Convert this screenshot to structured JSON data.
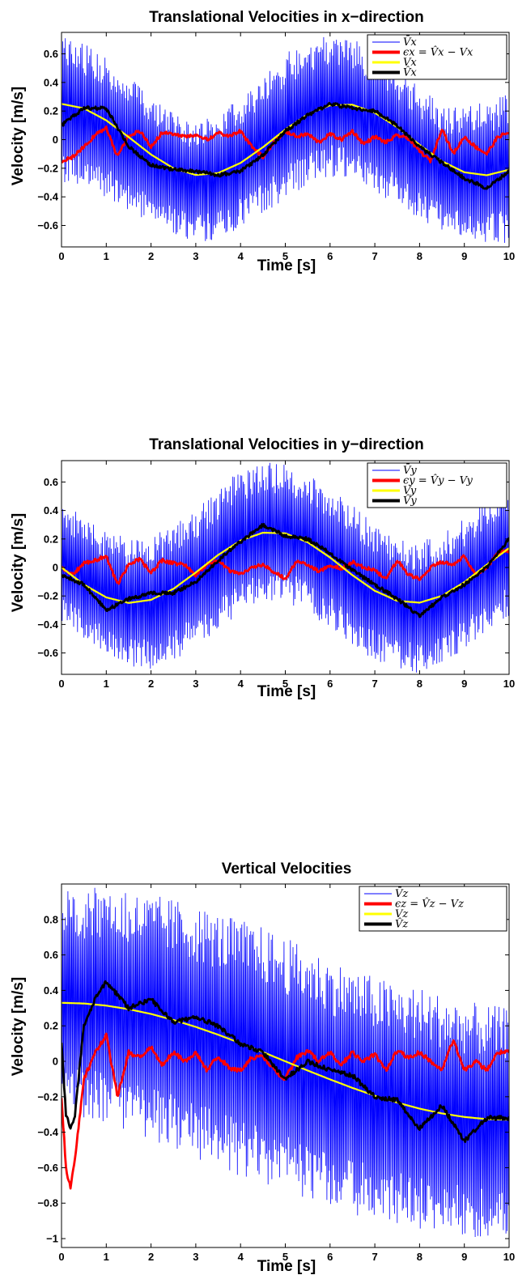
{
  "chart_data": [
    {
      "type": "line",
      "title": "Translational Velocities in x−direction",
      "xlabel": "Time [s]",
      "ylabel": "Velocity [m/s]",
      "xlim": [
        0,
        10
      ],
      "ylim": [
        -0.75,
        0.75
      ],
      "xticks": [
        "0",
        "1",
        "2",
        "3",
        "4",
        "5",
        "6",
        "7",
        "8",
        "9",
        "10"
      ],
      "yticks": [
        {
          "value": -0.6,
          "label": "−0.6"
        },
        {
          "value": -0.4,
          "label": "−0.4"
        },
        {
          "value": -0.2,
          "label": "−0.2"
        },
        {
          "value": 0,
          "label": "0"
        },
        {
          "value": 0.2,
          "label": "0.2"
        },
        {
          "value": 0.4,
          "label": "0.4"
        },
        {
          "value": 0.6,
          "label": "0.6"
        }
      ],
      "grid": false,
      "legend_position": "top-right",
      "series": [
        {
          "name": "V̄x",
          "color": "#0000ff",
          "role": "measured",
          "x": [
            0,
            0.5,
            1,
            1.5,
            2,
            2.5,
            3,
            3.5,
            4,
            4.5,
            5,
            5.5,
            6,
            6.5,
            7,
            7.5,
            8,
            8.5,
            9,
            9.5,
            10
          ],
          "envelope_upper": [
            0.72,
            0.68,
            0.6,
            0.46,
            0.32,
            0.18,
            0.12,
            0.18,
            0.3,
            0.46,
            0.6,
            0.7,
            0.74,
            0.72,
            0.62,
            0.5,
            0.36,
            0.26,
            0.22,
            0.28,
            0.32
          ],
          "envelope_lower": [
            -0.3,
            -0.36,
            -0.42,
            -0.5,
            -0.58,
            -0.66,
            -0.72,
            -0.7,
            -0.62,
            -0.52,
            -0.42,
            -0.32,
            -0.26,
            -0.28,
            -0.36,
            -0.46,
            -0.56,
            -0.66,
            -0.72,
            -0.74,
            -0.72
          ]
        },
        {
          "name": "ϵx = V̂x − Vx",
          "color": "#ff0000",
          "role": "error",
          "x": [
            0,
            0.25,
            0.5,
            0.75,
            1,
            1.25,
            1.5,
            1.75,
            2,
            2.25,
            2.5,
            2.75,
            3,
            3.25,
            3.5,
            3.75,
            4,
            4.25,
            4.5,
            4.75,
            5,
            5.25,
            5.5,
            5.75,
            6,
            6.25,
            6.5,
            6.75,
            7,
            7.25,
            7.5,
            7.75,
            8,
            8.25,
            8.5,
            8.75,
            9,
            9.25,
            9.5,
            9.75,
            10
          ],
          "y": [
            -0.15,
            -0.12,
            -0.05,
            0.03,
            0.08,
            -0.12,
            0.03,
            0.06,
            -0.05,
            0.05,
            0.04,
            0.02,
            0.03,
            0.0,
            0.05,
            0.02,
            0.06,
            -0.05,
            -0.12,
            -0.02,
            0.06,
            0.02,
            0.04,
            -0.02,
            0.04,
            0.0,
            0.06,
            -0.03,
            0.02,
            -0.02,
            0.03,
            0.01,
            -0.08,
            -0.15,
            0.08,
            -0.1,
            0.02,
            -0.05,
            -0.1,
            0.02,
            0.05
          ]
        },
        {
          "name": "Vx",
          "color": "#ffff00",
          "role": "true",
          "formula": "0.25*cos(t)",
          "x": [
            0,
            0.5,
            1,
            1.5,
            2,
            2.5,
            3,
            3.5,
            4,
            4.5,
            5,
            5.5,
            6,
            6.5,
            7,
            7.5,
            8,
            8.5,
            9,
            9.5,
            10
          ],
          "y": [
            0.25,
            0.219,
            0.135,
            0.018,
            -0.104,
            -0.2,
            -0.247,
            -0.234,
            -0.163,
            -0.053,
            0.071,
            0.177,
            0.24,
            0.244,
            0.188,
            0.087,
            -0.036,
            -0.151,
            -0.228,
            -0.249,
            -0.21
          ]
        },
        {
          "name": "V̂x",
          "color": "#000000",
          "role": "estimate",
          "x": [
            0,
            0.5,
            1,
            1.5,
            2,
            2.5,
            3,
            3.5,
            4,
            4.5,
            5,
            5.5,
            6,
            6.5,
            7,
            7.5,
            8,
            8.5,
            9,
            9.5,
            10
          ],
          "y": [
            0.1,
            0.22,
            0.22,
            -0.05,
            -0.18,
            -0.21,
            -0.22,
            -0.25,
            -0.22,
            -0.11,
            0.06,
            0.17,
            0.25,
            0.22,
            0.2,
            0.1,
            -0.05,
            -0.16,
            -0.27,
            -0.34,
            -0.22
          ]
        }
      ]
    },
    {
      "type": "line",
      "title": "Translational Velocities in y−direction",
      "xlabel": "Time [s]",
      "ylabel": "Velocity [m/s]",
      "xlim": [
        0,
        10
      ],
      "ylim": [
        -0.75,
        0.75
      ],
      "xticks": [
        "0",
        "1",
        "2",
        "3",
        "4",
        "5",
        "6",
        "7",
        "8",
        "9",
        "10"
      ],
      "yticks": [
        {
          "value": -0.6,
          "label": "−0.6"
        },
        {
          "value": -0.4,
          "label": "−0.4"
        },
        {
          "value": -0.2,
          "label": "−0.2"
        },
        {
          "value": 0,
          "label": "0"
        },
        {
          "value": 0.2,
          "label": "0.2"
        },
        {
          "value": 0.4,
          "label": "0.4"
        },
        {
          "value": 0.6,
          "label": "0.6"
        }
      ],
      "grid": false,
      "legend_position": "top-right",
      "series": [
        {
          "name": "V̄y",
          "color": "#0000ff",
          "role": "measured",
          "x": [
            0,
            0.5,
            1,
            1.5,
            2,
            2.5,
            3,
            3.5,
            4,
            4.5,
            5,
            5.5,
            6,
            6.5,
            7,
            7.5,
            8,
            8.5,
            9,
            9.5,
            10
          ],
          "envelope_upper": [
            0.46,
            0.36,
            0.26,
            0.2,
            0.22,
            0.3,
            0.42,
            0.56,
            0.68,
            0.74,
            0.74,
            0.66,
            0.56,
            0.44,
            0.32,
            0.22,
            0.18,
            0.24,
            0.36,
            0.5,
            0.6
          ],
          "envelope_lower": [
            -0.4,
            -0.5,
            -0.62,
            -0.7,
            -0.72,
            -0.66,
            -0.56,
            -0.44,
            -0.32,
            -0.24,
            -0.24,
            -0.32,
            -0.42,
            -0.54,
            -0.66,
            -0.72,
            -0.74,
            -0.7,
            -0.58,
            -0.46,
            -0.34
          ]
        },
        {
          "name": "ϵy = V̂y − Vy",
          "color": "#ff0000",
          "role": "error",
          "x": [
            0,
            0.25,
            0.5,
            0.75,
            1,
            1.25,
            1.5,
            1.75,
            2,
            2.25,
            2.5,
            2.75,
            3,
            3.25,
            3.5,
            3.75,
            4,
            4.25,
            4.5,
            4.75,
            5,
            5.25,
            5.5,
            5.75,
            6,
            6.25,
            6.5,
            6.75,
            7,
            7.25,
            7.5,
            7.75,
            8,
            8.25,
            8.5,
            8.75,
            9,
            9.25,
            9.5,
            9.75,
            10
          ],
          "y": [
            0.0,
            -0.05,
            0.03,
            0.05,
            0.08,
            -0.12,
            0.02,
            0.06,
            -0.04,
            0.05,
            0.03,
            0.02,
            -0.06,
            0.02,
            0.05,
            -0.02,
            -0.05,
            0.0,
            0.02,
            -0.03,
            -0.08,
            0.04,
            0.02,
            -0.03,
            0.02,
            -0.01,
            0.04,
            0.0,
            -0.02,
            -0.08,
            0.05,
            -0.05,
            -0.08,
            0.0,
            0.04,
            0.02,
            0.08,
            -0.05,
            0.0,
            0.1,
            0.12
          ]
        },
        {
          "name": "Vy",
          "color": "#ffff00",
          "role": "true",
          "formula": "-0.25*sin(t)",
          "x": [
            0,
            0.5,
            1,
            1.5,
            2,
            2.5,
            3,
            3.5,
            4,
            4.5,
            5,
            5.5,
            6,
            6.5,
            7,
            7.5,
            8,
            8.5,
            9,
            9.5,
            10
          ],
          "y": [
            0.0,
            -0.12,
            -0.21,
            -0.249,
            -0.227,
            -0.15,
            -0.035,
            0.088,
            0.189,
            0.244,
            0.24,
            0.177,
            0.07,
            -0.054,
            -0.164,
            -0.234,
            -0.247,
            -0.199,
            -0.103,
            0.019,
            0.136
          ]
        },
        {
          "name": "V̂y",
          "color": "#000000",
          "role": "estimate",
          "x": [
            0,
            0.5,
            1,
            1.5,
            2,
            2.5,
            3,
            3.5,
            4,
            4.5,
            5,
            5.5,
            6,
            6.5,
            7,
            7.5,
            8,
            8.5,
            9,
            9.5,
            10
          ],
          "y": [
            -0.05,
            -0.12,
            -0.3,
            -0.22,
            -0.18,
            -0.18,
            -0.1,
            0.05,
            0.18,
            0.3,
            0.22,
            0.2,
            0.1,
            -0.02,
            -0.12,
            -0.22,
            -0.34,
            -0.21,
            -0.12,
            0.0,
            0.2
          ]
        }
      ]
    },
    {
      "type": "line",
      "title": "Vertical Velocities",
      "xlabel": "Time [s]",
      "ylabel": "Velocity [m/s]",
      "xlim": [
        0,
        10
      ],
      "ylim": [
        -1.05,
        1.0
      ],
      "xticks": [
        "0",
        "1",
        "2",
        "3",
        "4",
        "5",
        "6",
        "7",
        "8",
        "9",
        "10"
      ],
      "yticks": [
        {
          "value": -1,
          "label": "−1"
        },
        {
          "value": -0.8,
          "label": "−0.8"
        },
        {
          "value": -0.6,
          "label": "−0.6"
        },
        {
          "value": -0.4,
          "label": "−0.4"
        },
        {
          "value": -0.2,
          "label": "−0.2"
        },
        {
          "value": 0,
          "label": "0"
        },
        {
          "value": 0.2,
          "label": "0.2"
        },
        {
          "value": 0.4,
          "label": "0.4"
        },
        {
          "value": 0.6,
          "label": "0.6"
        },
        {
          "value": 0.8,
          "label": "0.8"
        }
      ],
      "grid": false,
      "legend_position": "top-right",
      "series": [
        {
          "name": "V̄z",
          "color": "#0000ff",
          "role": "measured",
          "x": [
            0,
            0.5,
            1,
            1.5,
            2,
            2.5,
            3,
            3.5,
            4,
            4.5,
            5,
            5.5,
            6,
            6.5,
            7,
            7.5,
            8,
            8.5,
            9,
            9.5,
            10
          ],
          "envelope_upper": [
            0.96,
            0.98,
            0.98,
            0.96,
            0.94,
            0.92,
            0.88,
            0.84,
            0.8,
            0.76,
            0.7,
            0.64,
            0.58,
            0.52,
            0.48,
            0.44,
            0.42,
            0.38,
            0.34,
            0.32,
            0.3
          ],
          "envelope_lower": [
            -0.3,
            -0.32,
            -0.36,
            -0.4,
            -0.45,
            -0.5,
            -0.55,
            -0.6,
            -0.65,
            -0.7,
            -0.74,
            -0.78,
            -0.82,
            -0.86,
            -0.9,
            -0.93,
            -0.96,
            -0.98,
            -0.99,
            -1.0,
            -1.0
          ]
        },
        {
          "name": "ϵz = V̂z − Vz",
          "color": "#ff0000",
          "role": "error",
          "x": [
            0,
            0.1,
            0.2,
            0.3,
            0.5,
            0.75,
            1,
            1.25,
            1.5,
            1.75,
            2,
            2.25,
            2.5,
            2.75,
            3,
            3.25,
            3.5,
            3.75,
            4,
            4.25,
            4.5,
            4.75,
            5,
            5.25,
            5.5,
            5.75,
            6,
            6.25,
            6.5,
            6.75,
            7,
            7.25,
            7.5,
            7.75,
            8,
            8.25,
            8.5,
            8.75,
            9,
            9.25,
            9.5,
            9.75,
            10
          ],
          "y": [
            -0.2,
            -0.6,
            -0.72,
            -0.55,
            -0.1,
            0.05,
            0.15,
            -0.2,
            0.05,
            0.02,
            0.08,
            -0.02,
            0.05,
            0.0,
            0.05,
            -0.05,
            0.03,
            -0.04,
            -0.05,
            0.02,
            0.03,
            -0.05,
            -0.1,
            0.02,
            0.06,
            0.0,
            0.05,
            -0.02,
            0.05,
            0.0,
            0.04,
            -0.05,
            0.06,
            0.02,
            0.05,
            0.0,
            -0.05,
            0.12,
            -0.05,
            0.0,
            -0.05,
            0.05,
            0.05
          ]
        },
        {
          "name": "Vz",
          "color": "#ffff00",
          "role": "true",
          "formula": "0.33*cos(t*pi/10)",
          "x": [
            0,
            0.5,
            1,
            1.5,
            2,
            2.5,
            3,
            3.5,
            4,
            4.5,
            5,
            5.5,
            6,
            6.5,
            7,
            7.5,
            8,
            8.5,
            9,
            9.5,
            10
          ],
          "y": [
            0.33,
            0.326,
            0.314,
            0.294,
            0.267,
            0.233,
            0.194,
            0.15,
            0.102,
            0.052,
            0.0,
            -0.052,
            -0.102,
            -0.15,
            -0.194,
            -0.233,
            -0.267,
            -0.294,
            -0.314,
            -0.326,
            -0.33
          ]
        },
        {
          "name": "V̂z",
          "color": "#000000",
          "role": "estimate",
          "x": [
            0,
            0.1,
            0.2,
            0.3,
            0.5,
            0.75,
            1,
            1.5,
            2,
            2.5,
            3,
            3.5,
            4,
            4.5,
            5,
            5.5,
            6,
            6.5,
            7,
            7.5,
            8,
            8.5,
            9,
            9.5,
            10
          ],
          "y": [
            0.1,
            -0.3,
            -0.38,
            -0.3,
            0.2,
            0.35,
            0.45,
            0.3,
            0.35,
            0.22,
            0.25,
            0.2,
            0.1,
            0.05,
            -0.1,
            0.0,
            -0.05,
            -0.08,
            -0.2,
            -0.22,
            -0.38,
            -0.25,
            -0.45,
            -0.32,
            -0.32
          ]
        }
      ]
    }
  ]
}
